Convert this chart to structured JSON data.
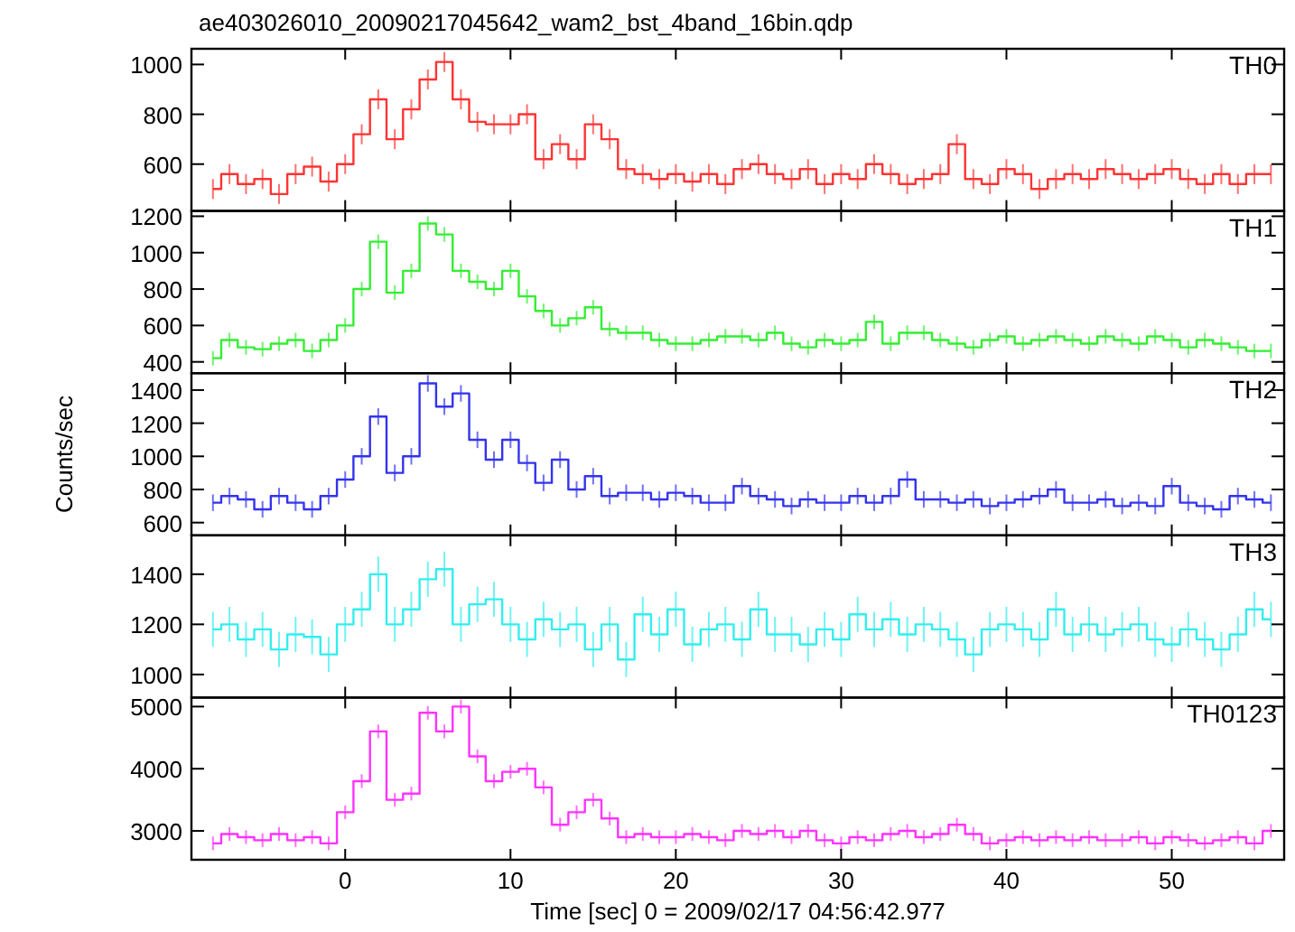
{
  "chart_data": [
    {
      "type": "step",
      "title": "ae403026010_20090217045642_wam2_bst_4band_16bin.qdp",
      "xlim": [
        -9.3,
        56.8
      ],
      "xticks": [
        0,
        10,
        20,
        30,
        40,
        50
      ],
      "ylim": [
        412,
        1063
      ],
      "yticks": [
        600,
        800,
        1000
      ],
      "tick_labels": "y",
      "x": [
        -8,
        -7,
        -6,
        -5,
        -4,
        -3,
        -2,
        -1,
        0,
        1,
        2,
        3,
        4,
        5,
        6,
        7,
        8,
        9,
        10,
        11,
        12,
        13,
        14,
        15,
        16,
        17,
        18,
        19,
        20,
        21,
        22,
        23,
        24,
        25,
        26,
        27,
        28,
        29,
        30,
        31,
        32,
        33,
        34,
        35,
        36,
        37,
        38,
        39,
        40,
        41,
        42,
        43,
        44,
        45,
        46,
        47,
        48,
        49,
        50,
        51,
        52,
        53,
        54,
        55,
        56
      ],
      "series": [
        {
          "name": "TH0",
          "color": "#ff3333",
          "values": [
            500,
            560,
            520,
            540,
            480,
            560,
            590,
            530,
            600,
            720,
            860,
            700,
            820,
            940,
            1010,
            860,
            770,
            760,
            760,
            800,
            620,
            680,
            620,
            760,
            700,
            580,
            560,
            540,
            560,
            530,
            560,
            520,
            580,
            600,
            560,
            540,
            580,
            520,
            560,
            540,
            600,
            560,
            520,
            540,
            560,
            680,
            540,
            520,
            580,
            560,
            500,
            540,
            560,
            540,
            580,
            560,
            540,
            560,
            580,
            540,
            520,
            560,
            520,
            560,
            560
          ],
          "errors": [
            40,
            40,
            40,
            40,
            40,
            40,
            40,
            40,
            40,
            40,
            40,
            40,
            40,
            40,
            40,
            40,
            40,
            40,
            40,
            40,
            40,
            40,
            40,
            40,
            40,
            40,
            40,
            40,
            40,
            40,
            40,
            40,
            40,
            40,
            40,
            40,
            40,
            40,
            40,
            40,
            40,
            40,
            40,
            40,
            40,
            40,
            40,
            40,
            40,
            40,
            40,
            40,
            40,
            40,
            40,
            40,
            40,
            40,
            40,
            40,
            40,
            40,
            40,
            40,
            40
          ]
        }
      ]
    },
    {
      "type": "step",
      "xlim": [
        -9.3,
        56.8
      ],
      "xticks": [
        0,
        10,
        20,
        30,
        40,
        50
      ],
      "ylim": [
        338,
        1229
      ],
      "yticks": [
        400,
        600,
        800,
        1000,
        1200
      ],
      "tick_labels": "y",
      "x": [
        -8,
        -7,
        -6,
        -5,
        -4,
        -3,
        -2,
        -1,
        0,
        1,
        2,
        3,
        4,
        5,
        6,
        7,
        8,
        9,
        10,
        11,
        12,
        13,
        14,
        15,
        16,
        17,
        18,
        19,
        20,
        21,
        22,
        23,
        24,
        25,
        26,
        27,
        28,
        29,
        30,
        31,
        32,
        33,
        34,
        35,
        36,
        37,
        38,
        39,
        40,
        41,
        42,
        43,
        44,
        45,
        46,
        47,
        48,
        49,
        50,
        51,
        52,
        53,
        54,
        55,
        56
      ],
      "series": [
        {
          "name": "TH1",
          "color": "#33ee33",
          "values": [
            420,
            520,
            480,
            470,
            500,
            520,
            460,
            520,
            600,
            800,
            1060,
            780,
            900,
            1160,
            1100,
            900,
            840,
            800,
            900,
            760,
            680,
            600,
            640,
            700,
            580,
            560,
            560,
            520,
            500,
            500,
            520,
            540,
            540,
            520,
            560,
            500,
            480,
            520,
            500,
            520,
            620,
            500,
            560,
            560,
            520,
            500,
            480,
            520,
            540,
            500,
            520,
            540,
            520,
            500,
            540,
            520,
            500,
            540,
            520,
            480,
            520,
            500,
            480,
            460,
            460
          ],
          "errors": [
            40,
            40,
            40,
            40,
            40,
            40,
            40,
            40,
            40,
            40,
            40,
            40,
            40,
            40,
            40,
            40,
            40,
            40,
            40,
            40,
            40,
            40,
            40,
            40,
            40,
            40,
            40,
            40,
            40,
            40,
            40,
            40,
            40,
            40,
            40,
            40,
            40,
            40,
            40,
            40,
            40,
            40,
            40,
            40,
            40,
            40,
            40,
            40,
            40,
            40,
            40,
            40,
            40,
            40,
            40,
            40,
            40,
            40,
            40,
            40,
            40,
            40,
            40,
            40,
            40
          ]
        }
      ]
    },
    {
      "type": "step",
      "ylabel": "Counts/sec",
      "xlim": [
        -9.3,
        56.8
      ],
      "xticks": [
        0,
        10,
        20,
        30,
        40,
        50
      ],
      "ylim": [
        523,
        1502
      ],
      "yticks": [
        600,
        800,
        1000,
        1200,
        1400
      ],
      "tick_labels": "y",
      "x": [
        -8,
        -7,
        -6,
        -5,
        -4,
        -3,
        -2,
        -1,
        0,
        1,
        2,
        3,
        4,
        5,
        6,
        7,
        8,
        9,
        10,
        11,
        12,
        13,
        14,
        15,
        16,
        17,
        18,
        19,
        20,
        21,
        22,
        23,
        24,
        25,
        26,
        27,
        28,
        29,
        30,
        31,
        32,
        33,
        34,
        35,
        36,
        37,
        38,
        39,
        40,
        41,
        42,
        43,
        44,
        45,
        46,
        47,
        48,
        49,
        50,
        51,
        52,
        53,
        54,
        55,
        56
      ],
      "series": [
        {
          "name": "TH2",
          "color": "#3333ee",
          "values": [
            720,
            760,
            740,
            680,
            760,
            720,
            680,
            760,
            860,
            1000,
            1240,
            900,
            1000,
            1440,
            1300,
            1380,
            1100,
            980,
            1100,
            960,
            840,
            980,
            800,
            880,
            760,
            780,
            780,
            740,
            780,
            760,
            720,
            720,
            820,
            760,
            740,
            700,
            740,
            720,
            720,
            760,
            720,
            760,
            860,
            740,
            740,
            720,
            740,
            700,
            720,
            740,
            760,
            800,
            720,
            720,
            740,
            700,
            720,
            700,
            820,
            720,
            700,
            680,
            760,
            740,
            720
          ],
          "errors": [
            50,
            50,
            50,
            50,
            50,
            50,
            50,
            50,
            50,
            50,
            50,
            50,
            50,
            50,
            50,
            50,
            50,
            50,
            50,
            50,
            50,
            50,
            50,
            50,
            50,
            50,
            50,
            50,
            50,
            50,
            50,
            50,
            50,
            50,
            50,
            50,
            50,
            50,
            50,
            50,
            50,
            50,
            50,
            50,
            50,
            50,
            50,
            50,
            50,
            50,
            50,
            50,
            50,
            50,
            50,
            50,
            50,
            50,
            50,
            50,
            50,
            50,
            50,
            50,
            50
          ]
        }
      ]
    },
    {
      "type": "step",
      "xlim": [
        -9.3,
        56.8
      ],
      "xticks": [
        0,
        10,
        20,
        30,
        40,
        50
      ],
      "ylim": [
        908,
        1555
      ],
      "yticks": [
        1000,
        1200,
        1400
      ],
      "tick_labels": "y",
      "x": [
        -8,
        -7,
        -6,
        -5,
        -4,
        -3,
        -2,
        -1,
        0,
        1,
        2,
        3,
        4,
        5,
        6,
        7,
        8,
        9,
        10,
        11,
        12,
        13,
        14,
        15,
        16,
        17,
        18,
        19,
        20,
        21,
        22,
        23,
        24,
        25,
        26,
        27,
        28,
        29,
        30,
        31,
        32,
        33,
        34,
        35,
        36,
        37,
        38,
        39,
        40,
        41,
        42,
        43,
        44,
        45,
        46,
        47,
        48,
        49,
        50,
        51,
        52,
        53,
        54,
        55,
        56
      ],
      "series": [
        {
          "name": "TH3",
          "color": "#33eeee",
          "values": [
            1180,
            1200,
            1140,
            1180,
            1100,
            1160,
            1150,
            1080,
            1200,
            1260,
            1400,
            1200,
            1260,
            1380,
            1420,
            1200,
            1280,
            1300,
            1200,
            1140,
            1220,
            1180,
            1200,
            1100,
            1200,
            1060,
            1240,
            1160,
            1260,
            1120,
            1180,
            1200,
            1140,
            1260,
            1160,
            1160,
            1120,
            1180,
            1140,
            1240,
            1180,
            1220,
            1160,
            1200,
            1180,
            1140,
            1080,
            1180,
            1200,
            1180,
            1140,
            1260,
            1160,
            1200,
            1160,
            1180,
            1200,
            1140,
            1120,
            1180,
            1140,
            1100,
            1160,
            1260,
            1220
          ],
          "errors": [
            70,
            70,
            70,
            70,
            70,
            70,
            70,
            70,
            70,
            70,
            70,
            70,
            70,
            70,
            70,
            70,
            70,
            70,
            70,
            70,
            70,
            70,
            70,
            70,
            70,
            70,
            70,
            70,
            70,
            70,
            70,
            70,
            70,
            70,
            70,
            70,
            70,
            70,
            70,
            70,
            70,
            70,
            70,
            70,
            70,
            70,
            70,
            70,
            70,
            70,
            70,
            70,
            70,
            70,
            70,
            70,
            70,
            70,
            70,
            70,
            70,
            70,
            70,
            70,
            70
          ]
        }
      ]
    },
    {
      "type": "step",
      "xlabel": "Time [sec] 0 = 2009/02/17 04:56:42.977",
      "xlim": [
        -9.3,
        56.8
      ],
      "xticks": [
        0,
        10,
        20,
        30,
        40,
        50
      ],
      "ylim": [
        2536,
        5145
      ],
      "yticks": [
        3000,
        4000,
        5000
      ],
      "x": [
        -8,
        -7,
        -6,
        -5,
        -4,
        -3,
        -2,
        -1,
        0,
        1,
        2,
        3,
        4,
        5,
        6,
        7,
        8,
        9,
        10,
        11,
        12,
        13,
        14,
        15,
        16,
        17,
        18,
        19,
        20,
        21,
        22,
        23,
        24,
        25,
        26,
        27,
        28,
        29,
        30,
        31,
        32,
        33,
        34,
        35,
        36,
        37,
        38,
        39,
        40,
        41,
        42,
        43,
        44,
        45,
        46,
        47,
        48,
        49,
        50,
        51,
        52,
        53,
        54,
        55,
        56
      ],
      "series": [
        {
          "name": "TH0123",
          "color": "#ff33ff",
          "values": [
            2800,
            2950,
            2900,
            2850,
            2950,
            2850,
            2900,
            2800,
            3300,
            3800,
            4600,
            3500,
            3600,
            4900,
            4600,
            5000,
            4200,
            3800,
            3950,
            4000,
            3700,
            3100,
            3300,
            3500,
            3200,
            2900,
            2950,
            2900,
            2900,
            2950,
            2900,
            2850,
            3000,
            2950,
            3000,
            2900,
            3000,
            2850,
            2800,
            2900,
            2850,
            2950,
            3000,
            2900,
            2950,
            3100,
            2950,
            2800,
            2850,
            2900,
            2850,
            2900,
            2850,
            2900,
            2850,
            2850,
            2900,
            2800,
            2900,
            2850,
            2800,
            2850,
            2900,
            2800,
            3000
          ],
          "errors": [
            110,
            110,
            110,
            110,
            110,
            110,
            110,
            110,
            110,
            110,
            110,
            110,
            110,
            110,
            110,
            110,
            110,
            110,
            110,
            110,
            110,
            110,
            110,
            110,
            110,
            110,
            110,
            110,
            110,
            110,
            110,
            110,
            110,
            110,
            110,
            110,
            110,
            110,
            110,
            110,
            110,
            110,
            110,
            110,
            110,
            110,
            110,
            110,
            110,
            110,
            110,
            110,
            110,
            110,
            110,
            110,
            110,
            110,
            110,
            110,
            110,
            110,
            110,
            110,
            110
          ]
        }
      ]
    }
  ]
}
